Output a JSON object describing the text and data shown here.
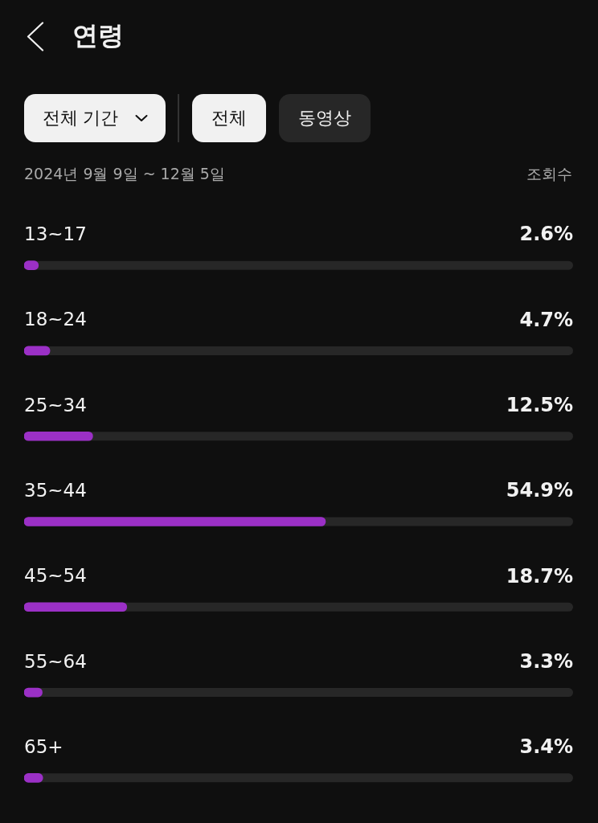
{
  "chart_data": {
    "type": "bar",
    "orientation": "horizontal",
    "title": "연령",
    "subtitle": "2024년 9월 9일 ~ 12월 5일",
    "xlabel": "조회수",
    "annotations": [
      "전체 기간",
      "전체",
      "동영상"
    ],
    "categories": [
      "13~17",
      "18~24",
      "25~34",
      "35~44",
      "45~54",
      "55~64",
      "65+"
    ],
    "values": [
      2.6,
      4.7,
      12.5,
      54.9,
      18.7,
      3.3,
      3.4
    ],
    "color": "#9b30c6",
    "value_labels": [
      "2.6%",
      "4.7%",
      "12.5%",
      "54.9%",
      "18.7%",
      "3.3%",
      "3.4%"
    ],
    "xlim": [
      0,
      100
    ],
    "tick_labels": "y",
    "legend": false
  }
}
